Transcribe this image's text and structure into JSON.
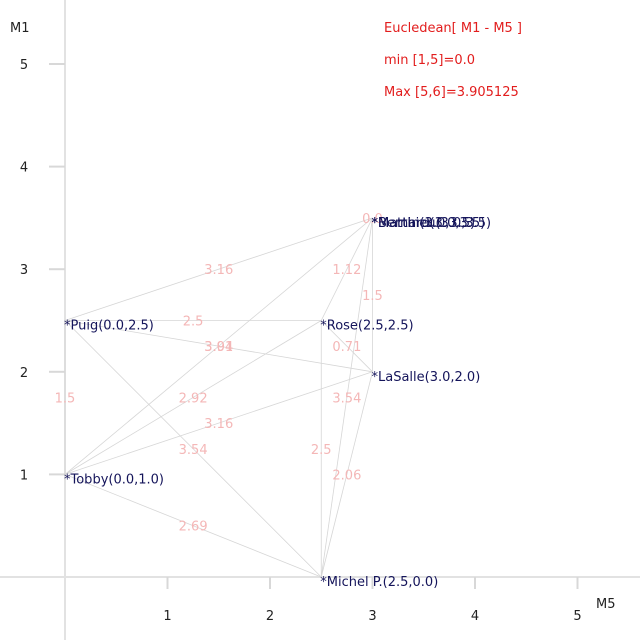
{
  "chart_data": {
    "type": "scatter",
    "title": "",
    "xlabel": "M5",
    "ylabel": "M1",
    "xlim": [
      -0.5,
      5.5
    ],
    "ylim": [
      -0.6,
      5.5
    ],
    "x_ticks": [
      "1",
      "2",
      "3",
      "4",
      "5"
    ],
    "y_ticks": [
      "1",
      "2",
      "3",
      "4",
      "5"
    ],
    "grid": false,
    "info_lines": [
      "Eucledean[ M1 - M5 ]",
      "min [1,5]=0.0",
      "Max [5,6]=3.905125"
    ],
    "points": [
      {
        "name": "Matthieu",
        "x": 3.0,
        "y": 3.5,
        "label": "*Matthieu(3.0,3.5)"
      },
      {
        "name": "Martin",
        "x": 3.0,
        "y": 3.5,
        "label": "*Martin(3.0,3.5)"
      },
      {
        "name": "Bernard",
        "x": 3.0,
        "y": 3.5,
        "label": "*Bernard(3.0,3.5)"
      },
      {
        "name": "Puig",
        "x": 0.0,
        "y": 2.5,
        "label": "*Puig(0.0,2.5)"
      },
      {
        "name": "Rose",
        "x": 2.5,
        "y": 2.5,
        "label": "*Rose(2.5,2.5)"
      },
      {
        "name": "LaSalle",
        "x": 3.0,
        "y": 2.0,
        "label": "*LaSalle(3.0,2.0)"
      },
      {
        "name": "Tobby",
        "x": 0.0,
        "y": 1.0,
        "label": "*Tobby(0.0,1.0)"
      },
      {
        "name": "Michel P.",
        "x": 2.5,
        "y": 0.0,
        "label": "*Michel P.(2.5,0.0)"
      }
    ],
    "edges": [
      {
        "from": [
          0.0,
          2.5
        ],
        "to": [
          3.0,
          3.5
        ],
        "label": "3.16"
      },
      {
        "from": [
          2.5,
          2.5
        ],
        "to": [
          3.0,
          3.5
        ],
        "label": "1.12"
      },
      {
        "from": [
          3.0,
          2.0
        ],
        "to": [
          3.0,
          3.5
        ],
        "label": "1.5"
      },
      {
        "from": [
          3.0,
          3.5
        ],
        "to": [
          3.0,
          3.5
        ],
        "label": "0.0"
      },
      {
        "from": [
          0.0,
          2.5
        ],
        "to": [
          2.5,
          2.5
        ],
        "label": "2.5"
      },
      {
        "from": [
          0.0,
          1.0
        ],
        "to": [
          3.0,
          3.5
        ],
        "label": "3.91"
      },
      {
        "from": [
          0.0,
          2.5
        ],
        "to": [
          3.0,
          2.0
        ],
        "label": "3.04"
      },
      {
        "from": [
          2.5,
          2.5
        ],
        "to": [
          3.0,
          2.0
        ],
        "label": "0.71"
      },
      {
        "from": [
          0.0,
          1.0
        ],
        "to": [
          2.5,
          2.5
        ],
        "label": "2.92"
      },
      {
        "from": [
          0.0,
          1.0
        ],
        "to": [
          3.0,
          2.0
        ],
        "label": "3.16"
      },
      {
        "from": [
          2.5,
          0.0
        ],
        "to": [
          3.0,
          3.5
        ],
        "label": "3.54"
      },
      {
        "from": [
          0.0,
          2.5
        ],
        "to": [
          2.5,
          0.0
        ],
        "label": "3.54"
      },
      {
        "from": [
          0.0,
          1.0
        ],
        "to": [
          0.0,
          2.5
        ],
        "label": "1.5"
      },
      {
        "from": [
          2.5,
          0.0
        ],
        "to": [
          2.5,
          2.5
        ],
        "label": "2.5"
      },
      {
        "from": [
          2.5,
          0.0
        ],
        "to": [
          3.0,
          2.0
        ],
        "label": "2.06"
      },
      {
        "from": [
          0.0,
          1.0
        ],
        "to": [
          2.5,
          0.0
        ],
        "label": "2.69"
      }
    ]
  }
}
